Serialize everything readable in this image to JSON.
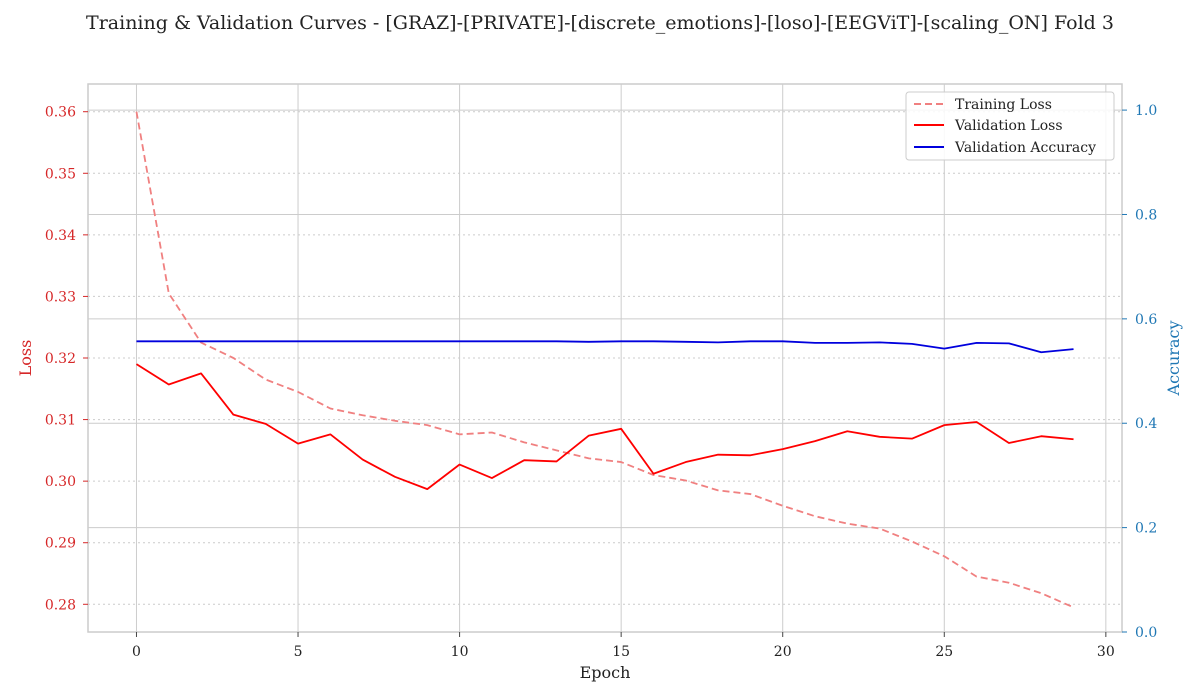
{
  "chart_data": {
    "type": "line",
    "title": "Training & Validation Curves - [GRAZ]-[PRIVATE]-[discrete_emotions]-[loso]-[EEGViT]-[scaling_ON] Fold 3",
    "xlabel": "Epoch",
    "ylabel_left": "Loss",
    "ylabel_right": "Accuracy",
    "xlim": [
      -1.5,
      30.5
    ],
    "ylim_left": [
      0.2755,
      0.3645
    ],
    "ylim_right": [
      0.0,
      1.05
    ],
    "x_ticks": [
      0,
      5,
      10,
      15,
      20,
      25,
      30
    ],
    "y_left_ticks": [
      0.28,
      0.29,
      0.3,
      0.31,
      0.32,
      0.33,
      0.34,
      0.35,
      0.36
    ],
    "y_left_tick_labels": [
      "0.28",
      "0.29",
      "0.30",
      "0.31",
      "0.32",
      "0.33",
      "0.34",
      "0.35",
      "0.36"
    ],
    "y_right_ticks": [
      0.0,
      0.2,
      0.4,
      0.6,
      0.8,
      1.0
    ],
    "y_right_tick_labels": [
      "0.0",
      "0.2",
      "0.4",
      "0.6",
      "0.8",
      "1.0"
    ],
    "grid": true,
    "legend_position": "top-right",
    "colors": {
      "training_loss": "#f08080",
      "validation_loss": "#ff0000",
      "validation_accuracy": "#0000dd",
      "left_axis": "#d62728",
      "right_axis": "#1f77b4"
    },
    "x": [
      0,
      1,
      2,
      3,
      4,
      5,
      6,
      7,
      8,
      9,
      10,
      11,
      12,
      13,
      14,
      15,
      16,
      17,
      18,
      19,
      20,
      21,
      22,
      23,
      24,
      25,
      26,
      27,
      28,
      29
    ],
    "series": [
      {
        "name": "Training Loss",
        "axis": "left",
        "style": "dashed",
        "values": [
          0.36,
          0.3305,
          0.3225,
          0.32,
          0.3165,
          0.3145,
          0.3118,
          0.3107,
          0.3098,
          0.3091,
          0.3076,
          0.3079,
          0.3063,
          0.305,
          0.3037,
          0.3031,
          0.301,
          0.3001,
          0.2985,
          0.2979,
          0.296,
          0.2943,
          0.2931,
          0.2923,
          0.2902,
          0.2878,
          0.2845,
          0.2835,
          0.2818,
          0.2795
        ]
      },
      {
        "name": "Validation Loss",
        "axis": "left",
        "style": "solid",
        "values": [
          0.319,
          0.3157,
          0.3175,
          0.3108,
          0.3093,
          0.3061,
          0.3076,
          0.3035,
          0.3007,
          0.2987,
          0.3027,
          0.3005,
          0.3034,
          0.3032,
          0.3074,
          0.3085,
          0.3012,
          0.3031,
          0.3043,
          0.3042,
          0.3052,
          0.3065,
          0.3081,
          0.3072,
          0.3069,
          0.3091,
          0.3096,
          0.3062,
          0.3073,
          0.3068
        ]
      },
      {
        "name": "Validation Accuracy",
        "axis": "right",
        "style": "solid",
        "values": [
          0.557,
          0.557,
          0.557,
          0.557,
          0.557,
          0.557,
          0.557,
          0.557,
          0.557,
          0.557,
          0.557,
          0.557,
          0.557,
          0.557,
          0.556,
          0.557,
          0.557,
          0.556,
          0.555,
          0.557,
          0.557,
          0.554,
          0.554,
          0.555,
          0.552,
          0.543,
          0.554,
          0.553,
          0.536,
          0.542
        ]
      }
    ]
  }
}
